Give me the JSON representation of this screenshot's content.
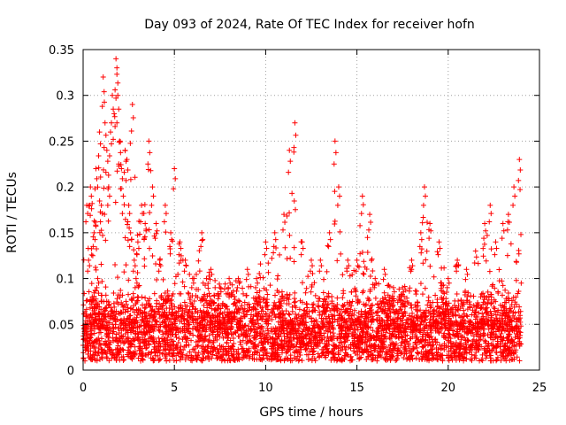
{
  "chart_data": {
    "type": "scatter",
    "title": "Day 093 of 2024, Rate Of TEC Index for receiver hofn",
    "xlabel": "GPS time / hours",
    "ylabel": "ROTI / TECUs",
    "xlim": [
      0,
      25
    ],
    "ylim": [
      0,
      0.35
    ],
    "xticks": [
      0,
      5,
      10,
      15,
      20,
      25
    ],
    "xtick_labels": [
      "0",
      "5",
      "10",
      "15",
      "20",
      "25"
    ],
    "yticks": [
      0,
      0.05,
      0.1,
      0.15,
      0.2,
      0.25,
      0.3,
      0.35
    ],
    "ytick_labels": [
      "0",
      "0.05",
      "0.1",
      "0.15",
      "0.2",
      "0.25",
      "0.3",
      "0.35"
    ],
    "grid": true,
    "marker": "+",
    "color": "#ff0000",
    "series": [
      {
        "name": "ROTI",
        "points": [
          [
            0.1,
            0.05
          ],
          [
            0.2,
            0.18
          ],
          [
            0.3,
            0.12
          ],
          [
            0.4,
            0.2
          ],
          [
            0.5,
            0.08
          ],
          [
            0.6,
            0.15
          ],
          [
            0.7,
            0.22
          ],
          [
            0.8,
            0.1
          ],
          [
            0.9,
            0.26
          ],
          [
            1.0,
            0.18
          ],
          [
            1.1,
            0.32
          ],
          [
            1.2,
            0.27
          ],
          [
            1.3,
            0.24
          ],
          [
            1.4,
            0.2
          ],
          [
            1.5,
            0.26
          ],
          [
            1.6,
            0.3
          ],
          [
            1.7,
            0.28
          ],
          [
            1.8,
            0.34
          ],
          [
            1.85,
            0.33
          ],
          [
            1.9,
            0.3
          ],
          [
            2.0,
            0.25
          ],
          [
            2.1,
            0.22
          ],
          [
            2.2,
            0.19
          ],
          [
            2.3,
            0.24
          ],
          [
            2.4,
            0.23
          ],
          [
            2.5,
            0.18
          ],
          [
            2.6,
            0.15
          ],
          [
            2.7,
            0.29
          ],
          [
            2.8,
            0.12
          ],
          [
            2.9,
            0.1
          ],
          [
            3.0,
            0.14
          ],
          [
            3.2,
            0.18
          ],
          [
            3.4,
            0.16
          ],
          [
            3.6,
            0.25
          ],
          [
            3.8,
            0.2
          ],
          [
            4.0,
            0.16
          ],
          [
            4.2,
            0.12
          ],
          [
            4.5,
            0.18
          ],
          [
            4.8,
            0.15
          ],
          [
            5.0,
            0.22
          ],
          [
            5.3,
            0.14
          ],
          [
            5.6,
            0.12
          ],
          [
            6.0,
            0.1
          ],
          [
            6.5,
            0.15
          ],
          [
            7.0,
            0.11
          ],
          [
            7.5,
            0.09
          ],
          [
            8.0,
            0.1
          ],
          [
            8.5,
            0.1
          ],
          [
            9.0,
            0.11
          ],
          [
            9.5,
            0.1
          ],
          [
            10.0,
            0.14
          ],
          [
            10.5,
            0.15
          ],
          [
            11.0,
            0.17
          ],
          [
            11.3,
            0.24
          ],
          [
            11.6,
            0.27
          ],
          [
            12.0,
            0.14
          ],
          [
            12.5,
            0.12
          ],
          [
            13.0,
            0.12
          ],
          [
            13.5,
            0.15
          ],
          [
            13.8,
            0.25
          ],
          [
            14.0,
            0.2
          ],
          [
            14.5,
            0.12
          ],
          [
            15.0,
            0.12
          ],
          [
            15.3,
            0.19
          ],
          [
            15.7,
            0.17
          ],
          [
            16.0,
            0.1
          ],
          [
            16.5,
            0.11
          ],
          [
            17.0,
            0.09
          ],
          [
            17.5,
            0.09
          ],
          [
            18.0,
            0.12
          ],
          [
            18.5,
            0.15
          ],
          [
            18.7,
            0.2
          ],
          [
            19.0,
            0.16
          ],
          [
            19.5,
            0.14
          ],
          [
            20.0,
            0.1
          ],
          [
            20.5,
            0.12
          ],
          [
            21.0,
            0.11
          ],
          [
            21.5,
            0.13
          ],
          [
            22.0,
            0.16
          ],
          [
            22.3,
            0.18
          ],
          [
            22.6,
            0.14
          ],
          [
            23.0,
            0.16
          ],
          [
            23.3,
            0.17
          ],
          [
            23.6,
            0.2
          ],
          [
            23.9,
            0.23
          ]
        ]
      }
    ],
    "baseline_band": {
      "mean": 0.045,
      "min": 0.01,
      "max": 0.09
    }
  }
}
